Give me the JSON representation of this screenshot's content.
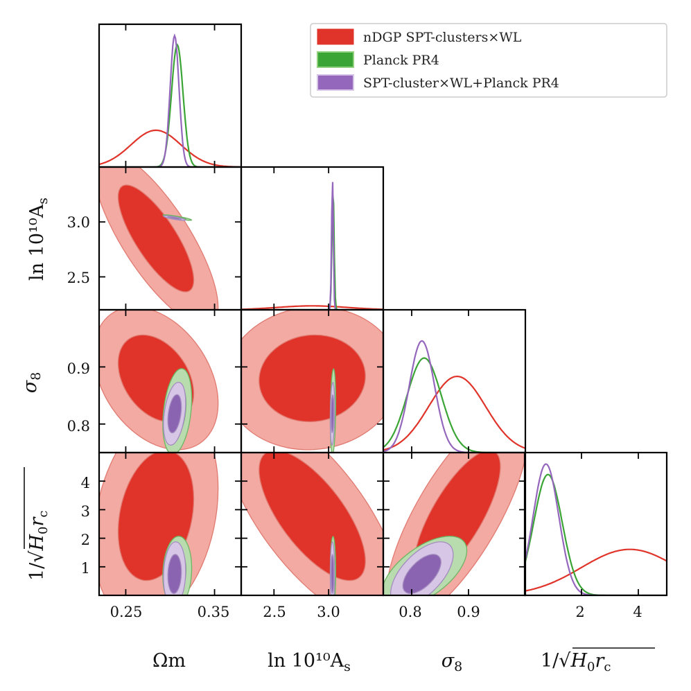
{
  "chart_data": {
    "type": "triangle-corner-plot",
    "parameters": [
      {
        "key": "om",
        "label": "Ωm",
        "range": [
          0.22,
          0.38
        ],
        "ticks": [
          0.25,
          0.35
        ]
      },
      {
        "key": "as",
        "label": "ln 10^10 A_s",
        "range": [
          2.2,
          3.5
        ],
        "ticks": [
          2.5,
          3.0
        ]
      },
      {
        "key": "s8",
        "label": "σ8",
        "range": [
          0.75,
          1.0
        ],
        "ticks": [
          0.8,
          0.9
        ]
      },
      {
        "key": "rc",
        "label": "1/√(H0 rc)",
        "range": [
          0,
          5
        ],
        "ticks": [
          2,
          4
        ],
        "offdiag_ticks": [
          1,
          2,
          3,
          4
        ]
      }
    ],
    "tick_labels": {
      "om_x": [
        "0.25",
        "0.35"
      ],
      "as_x": [
        "2.5",
        "3.0"
      ],
      "s8_x": [
        "0.8",
        "0.9"
      ],
      "rc_x": [
        "2",
        "4"
      ],
      "as_y": [
        "3.0",
        "2.5"
      ],
      "s8_y": [
        "0.9",
        "0.8"
      ],
      "rc_y": [
        "4",
        "3",
        "2",
        "1"
      ]
    },
    "axis_labels": {
      "om": "Ωm",
      "as": "ln 10¹⁰A",
      "as_sub": "s",
      "s8": "σ",
      "s8_sub": "8",
      "rc": "1/√",
      "rc_inner": "H",
      "rc_sub0": "0",
      "rc_r": "r",
      "rc_subc": "c"
    },
    "legend": {
      "placement": "top-right",
      "entries": [
        {
          "label": "nDGP SPT-clusters×WL",
          "color": "#e0342a"
        },
        {
          "label": "Planck PR4",
          "color": "#3aa535"
        },
        {
          "label": "SPT-cluster×WL+Planck PR4",
          "color": "#9467bd"
        }
      ]
    },
    "series": [
      {
        "name": "nDGP SPT-clusters×WL",
        "color": "#e0342a",
        "means": {
          "om": 0.284,
          "as": 2.85,
          "s8": 0.88,
          "rc": 3.7
        },
        "sigmas": {
          "om": 0.028,
          "as": 0.32,
          "s8": 0.05,
          "rc": 1.7
        }
      },
      {
        "name": "Planck PR4",
        "color": "#3aa535",
        "means": {
          "om": 0.308,
          "as": 3.04,
          "s8": 0.822,
          "rc": 0.82
        },
        "sigmas": {
          "om": 0.0065,
          "as": 0.01,
          "s8": 0.03,
          "rc": 0.5
        }
      },
      {
        "name": "SPT-cluster×WL+Planck PR4",
        "color": "#9467bd",
        "means": {
          "om": 0.305,
          "as": 3.035,
          "s8": 0.818,
          "rc": 0.75
        },
        "sigmas": {
          "om": 0.005,
          "as": 0.008,
          "s8": 0.022,
          "rc": 0.45
        }
      }
    ],
    "colors": {
      "red_fill_outer": "#f2aaa3",
      "red_fill_inner": "#e0342a",
      "red_line": "#e07a70",
      "green_fill_outer": "#b9dcae",
      "green_fill_inner": "#8fc682",
      "green_line": "#6cb662",
      "purple_fill_outer": "#d8c6e6",
      "purple_fill_inner": "#8b64b1",
      "purple_line": "#a48cc0"
    }
  }
}
